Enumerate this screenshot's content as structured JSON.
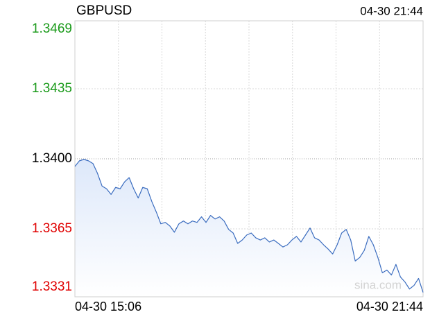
{
  "chart_data": {
    "type": "line",
    "title": "GBPUSD",
    "timestamp": "04-30 21:44",
    "watermark": "sina.com",
    "x_labels": [
      "04-30 15:06",
      "04-30 21:44"
    ],
    "x_grid_divisions": 8,
    "ylim": [
      1.3331,
      1.3469
    ],
    "yticks": [
      1.3331,
      1.3365,
      {
        "value": 1.34,
        "label": "1.3400"
      },
      1.3435,
      1.3469
    ],
    "ytick_colors": [
      "#e00000",
      "#e00000",
      "#000000",
      "#1a9a1a",
      "#1a9a1a"
    ],
    "grid": true,
    "series": [
      {
        "name": "GBPUSD",
        "color": "#3a6cbf",
        "values": [
          1.33962,
          1.3399,
          1.33997,
          1.3399,
          1.33976,
          1.33927,
          1.33864,
          1.3385,
          1.33822,
          1.33857,
          1.3385,
          1.33885,
          1.33906,
          1.3385,
          1.33804,
          1.33857,
          1.3385,
          1.33787,
          1.33734,
          1.33675,
          1.33682,
          1.33664,
          1.33633,
          1.33675,
          1.33689,
          1.33675,
          1.33689,
          1.33682,
          1.3371,
          1.33682,
          1.33717,
          1.33699,
          1.3371,
          1.33689,
          1.33647,
          1.33629,
          1.33577,
          1.33594,
          1.33619,
          1.33629,
          1.33605,
          1.33594,
          1.33605,
          1.33584,
          1.33594,
          1.33577,
          1.33559,
          1.3357,
          1.33594,
          1.33612,
          1.33584,
          1.33619,
          1.33654,
          1.33605,
          1.33594,
          1.3357,
          1.33549,
          1.33524,
          1.3357,
          1.33629,
          1.33647,
          1.33594,
          1.33489,
          1.33507,
          1.33542,
          1.33612,
          1.3357,
          1.33507,
          1.3343,
          1.33444,
          1.33419,
          1.33472,
          1.33409,
          1.33384,
          1.33349,
          1.33367,
          1.33402,
          1.33332
        ]
      }
    ]
  }
}
